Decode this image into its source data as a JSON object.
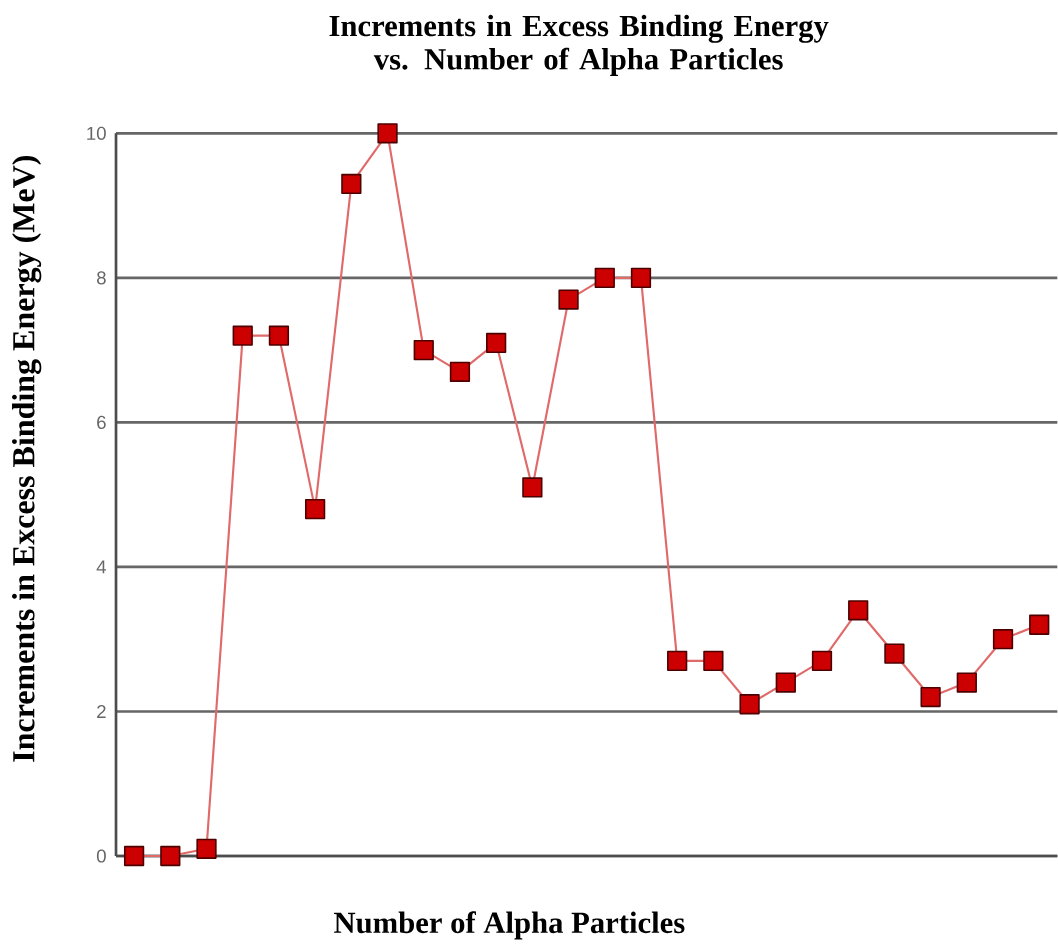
{
  "chart_data": {
    "type": "line",
    "title": "Increments in Excess Binding Energy vs. Number of Alpha Particles",
    "xlabel": "Number of Alpha Particles",
    "ylabel": "Increments in Excess Binding Energy  (MeV)",
    "categories": [
      null,
      null,
      null,
      null,
      null,
      null,
      null,
      null,
      null,
      null,
      null,
      null,
      null,
      null,
      null,
      null,
      null,
      null,
      null,
      null,
      null,
      null,
      null,
      null,
      null,
      null
    ],
    "series": [
      {
        "color": "#e06a6a",
        "values": [
          0.0,
          0.0,
          0.1,
          7.2,
          7.2,
          4.8,
          9.3,
          10.0,
          7.0,
          6.7,
          7.1,
          5.1,
          7.7,
          8.0,
          8.0,
          2.7,
          2.7,
          2.1,
          2.4,
          2.7,
          3.4,
          2.8,
          2.2,
          2.4,
          3.0,
          3.2
        ]
      }
    ],
    "ylim": [
      0,
      10
    ],
    "yticks": [
      0,
      2,
      4,
      6,
      8,
      10
    ],
    "grid": "y",
    "marker": "square",
    "line_style": "solid"
  }
}
